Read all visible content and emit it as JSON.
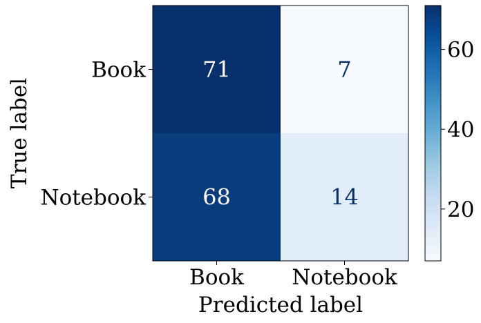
{
  "chart_data": {
    "type": "heatmap",
    "title": "",
    "xlabel": "Predicted label",
    "ylabel": "True label",
    "x_categories": [
      "Book",
      "Notebook"
    ],
    "y_categories": [
      "Book",
      "Notebook"
    ],
    "values": [
      [
        71,
        7
      ],
      [
        68,
        14
      ]
    ],
    "colormap": "Blues",
    "colorbar": {
      "min": 7,
      "max": 71,
      "ticks": [
        20,
        40,
        60
      ]
    },
    "grid": false,
    "legend": "none"
  }
}
